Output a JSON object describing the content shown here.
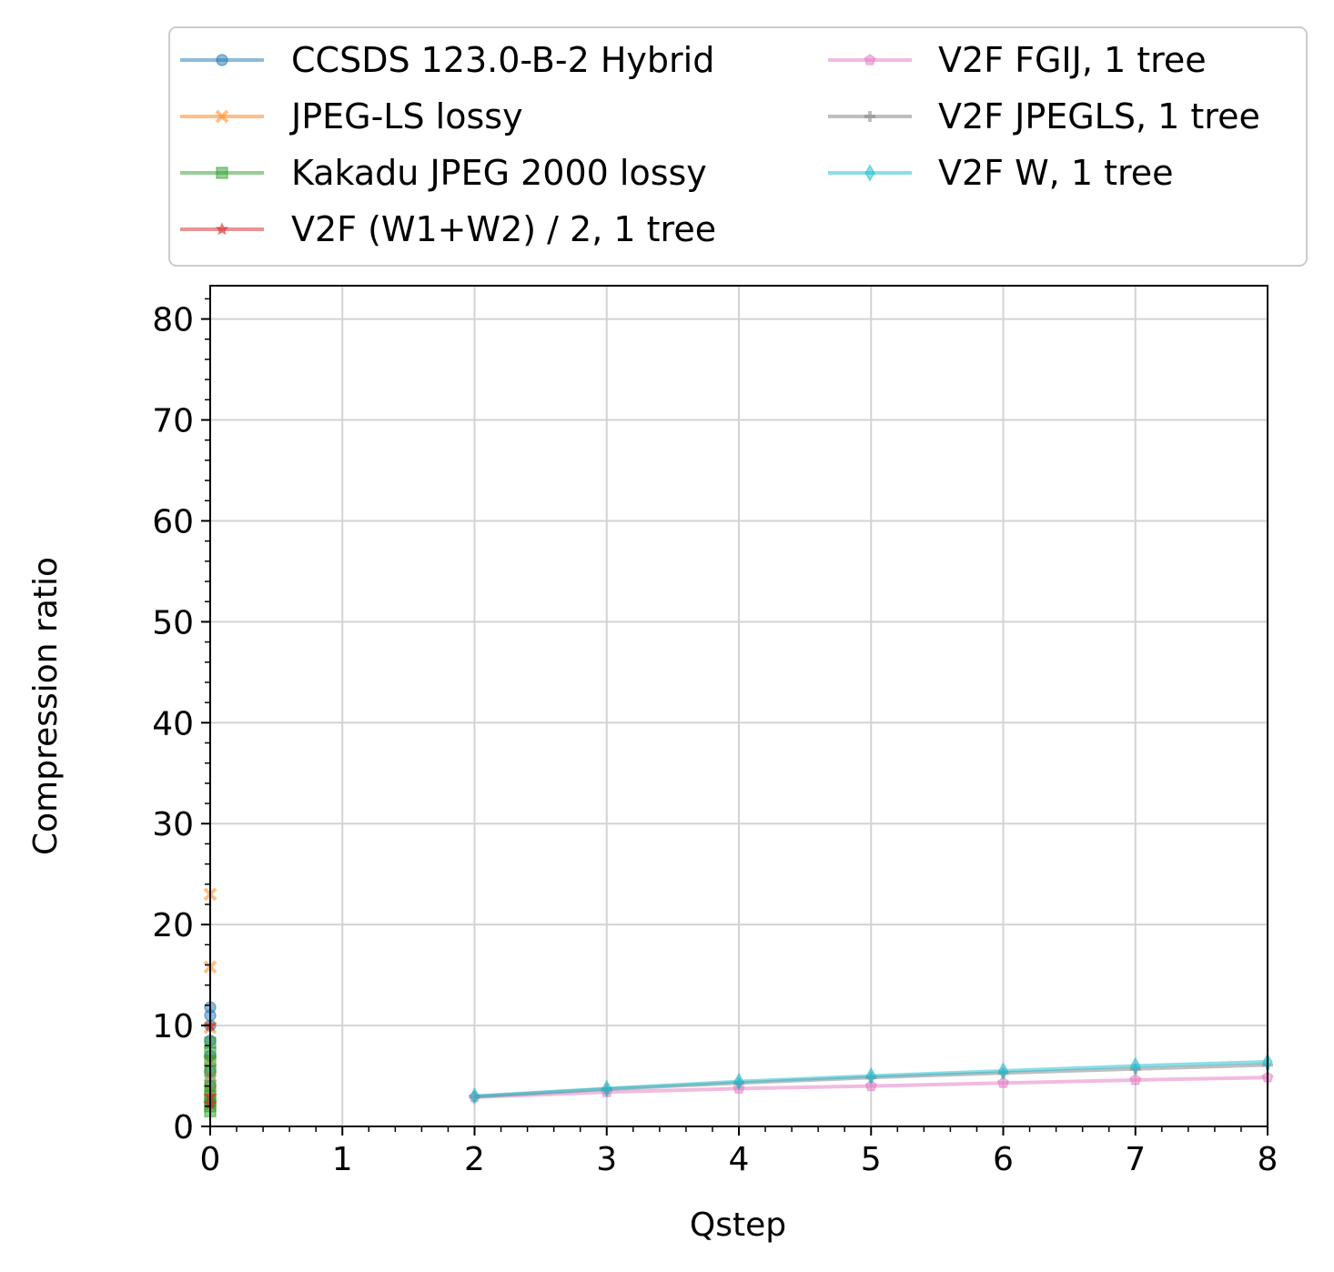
{
  "chart_data": {
    "type": "line",
    "xlabel": "Qstep",
    "ylabel": "Compression ratio",
    "xlim": [
      0,
      8
    ],
    "ylim": [
      0,
      83.3
    ],
    "x_ticks": [
      "0",
      "1",
      "2",
      "3",
      "4",
      "5",
      "6",
      "7",
      "8"
    ],
    "y_ticks": [
      "0",
      "10",
      "20",
      "30",
      "40",
      "50",
      "60",
      "70",
      "80"
    ],
    "grid": true,
    "legend_position": "top, above plot, 2 columns",
    "series": [
      {
        "name": "CCSDS 123.0-B-2 Hybrid",
        "color": "#1f77b4",
        "marker": "circle",
        "points": [
          [
            0,
            2.5
          ],
          [
            0,
            4.0
          ],
          [
            0,
            5.5
          ],
          [
            0,
            7.0
          ],
          [
            0,
            8.5
          ],
          [
            0,
            10.0
          ],
          [
            0,
            11.0
          ],
          [
            0,
            11.8
          ]
        ]
      },
      {
        "name": "JPEG-LS lossy",
        "color": "#ff7f0e",
        "marker": "x",
        "points": [
          [
            0,
            2.8
          ],
          [
            0,
            3.6
          ],
          [
            0,
            5.0
          ],
          [
            0,
            6.5
          ],
          [
            0,
            9.8
          ],
          [
            0,
            15.8
          ],
          [
            0,
            23.0
          ]
        ]
      },
      {
        "name": "Kakadu JPEG 2000 lossy",
        "color": "#2ca02c",
        "marker": "square",
        "points": [
          [
            0,
            1.5
          ],
          [
            0,
            2.0
          ],
          [
            0,
            2.5
          ],
          [
            0,
            3.0
          ],
          [
            0,
            4.0
          ],
          [
            0,
            5.5
          ],
          [
            0,
            6.5
          ],
          [
            0,
            7.3
          ],
          [
            0,
            8.3
          ]
        ]
      },
      {
        "name": "V2F (W1+W2) / 2, 1 tree",
        "color": "#d62728",
        "marker": "star",
        "points": [
          [
            0,
            2.2
          ],
          [
            0,
            3.0
          ],
          [
            0,
            10.0
          ]
        ]
      },
      {
        "name": "V2F FGIJ, 1 tree",
        "color": "#e377c2",
        "marker": "pentagon",
        "points": [
          [
            2,
            2.9
          ],
          [
            3,
            3.4
          ],
          [
            4,
            3.75
          ],
          [
            5,
            4.0
          ],
          [
            6,
            4.3
          ],
          [
            7,
            4.6
          ],
          [
            8,
            4.85
          ]
        ]
      },
      {
        "name": "V2F JPEGLS, 1 tree",
        "color": "#7f7f7f",
        "marker": "plus",
        "points": [
          [
            0,
            4.8
          ],
          [
            2,
            2.95
          ],
          [
            3,
            3.7
          ],
          [
            4,
            4.3
          ],
          [
            5,
            4.85
          ],
          [
            6,
            5.3
          ],
          [
            7,
            5.7
          ],
          [
            8,
            6.1
          ]
        ]
      },
      {
        "name": "V2F W, 1 tree",
        "color": "#17becf",
        "marker": "diamond",
        "points": [
          [
            2,
            3.0
          ],
          [
            3,
            3.75
          ],
          [
            4,
            4.45
          ],
          [
            5,
            5.0
          ],
          [
            6,
            5.5
          ],
          [
            7,
            6.0
          ],
          [
            8,
            6.4
          ]
        ]
      }
    ]
  }
}
